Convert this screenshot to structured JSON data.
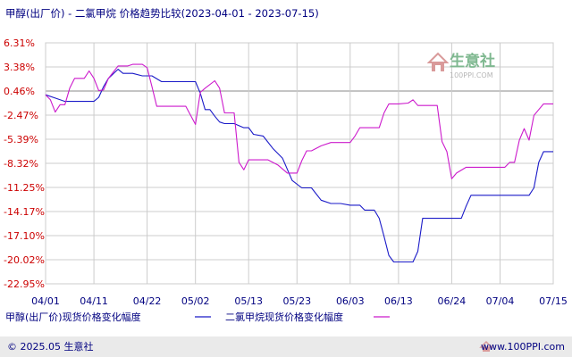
{
  "chart_data": {
    "type": "line",
    "title": "甲醇(出厂价) - 二氯甲烷 价格趋势比较(2023-04-01 - 2023-07-15)",
    "xlabel": "",
    "ylabel": "",
    "x_ticks": [
      "04/01",
      "04/11",
      "04/22",
      "05/02",
      "05/13",
      "05/23",
      "06/03",
      "06/13",
      "06/24",
      "07/04",
      "07/15"
    ],
    "y_ticks": [
      "6.31%",
      "3.38%",
      "0.46%",
      "-2.47%",
      "-5.39%",
      "-8.32%",
      "-11.25%",
      "-14.17%",
      "-17.10%",
      "-20.02%",
      "-22.95%"
    ],
    "ylim": [
      -22.95,
      6.31
    ],
    "grid": true,
    "legend_position": "bottom",
    "series": [
      {
        "name": "甲醇(出厂价)现货价格变化幅度",
        "color": "#1a1ac8",
        "points": [
          [
            "04/01",
            0.0
          ],
          [
            "04/03",
            -0.4
          ],
          [
            "04/05",
            -0.8
          ],
          [
            "04/07",
            -0.8
          ],
          [
            "04/09",
            -0.8
          ],
          [
            "04/11",
            -0.8
          ],
          [
            "04/12",
            -0.3
          ],
          [
            "04/13",
            1.0
          ],
          [
            "04/14",
            2.0
          ],
          [
            "04/16",
            3.1
          ],
          [
            "04/17",
            2.6
          ],
          [
            "04/19",
            2.6
          ],
          [
            "04/21",
            2.3
          ],
          [
            "04/23",
            2.3
          ],
          [
            "04/25",
            1.6
          ],
          [
            "04/27",
            1.6
          ],
          [
            "04/29",
            1.6
          ],
          [
            "05/01",
            1.6
          ],
          [
            "05/02",
            1.6
          ],
          [
            "05/03",
            0.2
          ],
          [
            "05/04",
            -1.8
          ],
          [
            "05/05",
            -1.8
          ],
          [
            "05/06",
            -2.6
          ],
          [
            "05/07",
            -3.3
          ],
          [
            "05/08",
            -3.5
          ],
          [
            "05/10",
            -3.5
          ],
          [
            "05/12",
            -4.0
          ],
          [
            "05/13",
            -4.0
          ],
          [
            "05/14",
            -4.8
          ],
          [
            "05/16",
            -5.0
          ],
          [
            "05/18",
            -6.5
          ],
          [
            "05/20",
            -7.7
          ],
          [
            "05/22",
            -10.4
          ],
          [
            "05/24",
            -11.3
          ],
          [
            "05/26",
            -11.3
          ],
          [
            "05/28",
            -12.8
          ],
          [
            "05/30",
            -13.2
          ],
          [
            "06/01",
            -13.2
          ],
          [
            "06/03",
            -13.4
          ],
          [
            "06/05",
            -13.4
          ],
          [
            "06/06",
            -14.0
          ],
          [
            "06/08",
            -14.0
          ],
          [
            "06/09",
            -15.0
          ],
          [
            "06/10",
            -17.2
          ],
          [
            "06/11",
            -19.5
          ],
          [
            "06/12",
            -20.3
          ],
          [
            "06/14",
            -20.3
          ],
          [
            "06/16",
            -20.3
          ],
          [
            "06/17",
            -19.0
          ],
          [
            "06/18",
            -15.0
          ],
          [
            "06/20",
            -15.0
          ],
          [
            "06/22",
            -15.0
          ],
          [
            "06/24",
            -15.0
          ],
          [
            "06/26",
            -15.0
          ],
          [
            "06/27",
            -13.5
          ],
          [
            "06/28",
            -12.2
          ],
          [
            "06/30",
            -12.2
          ],
          [
            "07/02",
            -12.2
          ],
          [
            "07/04",
            -12.2
          ],
          [
            "07/06",
            -12.2
          ],
          [
            "07/08",
            -12.2
          ],
          [
            "07/10",
            -12.2
          ],
          [
            "07/11",
            -11.3
          ],
          [
            "07/12",
            -8.2
          ],
          [
            "07/13",
            -6.9
          ],
          [
            "07/15",
            -6.9
          ]
        ]
      },
      {
        "name": "二氯甲烷现货价格变化幅度",
        "color": "#cc1acc",
        "points": [
          [
            "04/01",
            0.0
          ],
          [
            "04/02",
            -0.6
          ],
          [
            "04/03",
            -2.1
          ],
          [
            "04/04",
            -1.2
          ],
          [
            "04/05",
            -1.2
          ],
          [
            "04/06",
            0.8
          ],
          [
            "04/07",
            2.0
          ],
          [
            "04/09",
            2.0
          ],
          [
            "04/10",
            2.9
          ],
          [
            "04/11",
            2.0
          ],
          [
            "04/12",
            0.5
          ],
          [
            "04/13",
            0.6
          ],
          [
            "04/14",
            2.0
          ],
          [
            "04/16",
            3.5
          ],
          [
            "04/18",
            3.5
          ],
          [
            "04/19",
            3.7
          ],
          [
            "04/21",
            3.7
          ],
          [
            "04/22",
            3.3
          ],
          [
            "04/23",
            1.0
          ],
          [
            "04/24",
            -1.4
          ],
          [
            "04/26",
            -1.4
          ],
          [
            "04/28",
            -1.4
          ],
          [
            "04/30",
            -1.4
          ],
          [
            "05/01",
            -2.5
          ],
          [
            "05/02",
            -3.6
          ],
          [
            "05/03",
            0.3
          ],
          [
            "05/04",
            0.8
          ],
          [
            "05/06",
            1.7
          ],
          [
            "05/07",
            0.8
          ],
          [
            "05/08",
            -2.2
          ],
          [
            "05/10",
            -2.2
          ],
          [
            "05/11",
            -8.2
          ],
          [
            "05/12",
            -9.1
          ],
          [
            "05/13",
            -7.9
          ],
          [
            "05/15",
            -7.9
          ],
          [
            "05/17",
            -7.9
          ],
          [
            "05/19",
            -8.5
          ],
          [
            "05/21",
            -9.5
          ],
          [
            "05/23",
            -9.5
          ],
          [
            "05/24",
            -8.0
          ],
          [
            "05/25",
            -6.8
          ],
          [
            "05/26",
            -6.8
          ],
          [
            "05/28",
            -6.2
          ],
          [
            "05/30",
            -5.8
          ],
          [
            "06/01",
            -5.8
          ],
          [
            "06/03",
            -5.8
          ],
          [
            "06/04",
            -5.0
          ],
          [
            "06/05",
            -4.0
          ],
          [
            "06/07",
            -4.0
          ],
          [
            "06/09",
            -4.0
          ],
          [
            "06/10",
            -2.2
          ],
          [
            "06/11",
            -1.1
          ],
          [
            "06/13",
            -1.1
          ],
          [
            "06/15",
            -1.0
          ],
          [
            "06/16",
            -0.6
          ],
          [
            "06/17",
            -1.3
          ],
          [
            "06/19",
            -1.3
          ],
          [
            "06/21",
            -1.3
          ],
          [
            "06/22",
            -5.7
          ],
          [
            "06/23",
            -6.9
          ],
          [
            "06/24",
            -10.2
          ],
          [
            "06/25",
            -9.5
          ],
          [
            "06/27",
            -8.8
          ],
          [
            "06/29",
            -8.8
          ],
          [
            "07/01",
            -8.8
          ],
          [
            "07/03",
            -8.8
          ],
          [
            "07/05",
            -8.8
          ],
          [
            "07/06",
            -8.2
          ],
          [
            "07/07",
            -8.2
          ],
          [
            "07/08",
            -5.5
          ],
          [
            "07/09",
            -4.1
          ],
          [
            "07/10",
            -5.5
          ],
          [
            "07/11",
            -2.5
          ],
          [
            "07/12",
            -1.8
          ],
          [
            "07/13",
            -1.1
          ],
          [
            "07/15",
            -1.1
          ]
        ]
      }
    ]
  },
  "watermark": {
    "site_name": "生意社",
    "site_url": "100PPI.COM"
  },
  "footer": {
    "copyright": "© 2025.05 生意社",
    "url": "www.100PPI.com"
  },
  "colors": {
    "grid": "#cccccc",
    "zero_line": "#888888",
    "tick_text": "#cc0000",
    "title_text": "#000080",
    "axis_text": "#000080",
    "footer_bg": "#eaeaea",
    "watermark_green": "#7fb890",
    "watermark_red": "#d99a9a"
  }
}
